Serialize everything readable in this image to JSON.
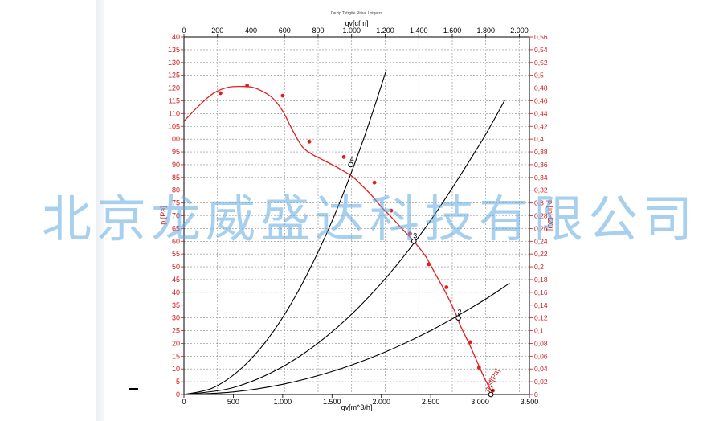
{
  "chart_data": {
    "type": "line",
    "title": "Dezip Tytrgite Ritive Lotgerrs",
    "x_bottom": {
      "label": "qv[m^3/h]",
      "range": [
        0,
        3500
      ],
      "ticks": [
        0,
        500,
        1000,
        1500,
        2000,
        2500,
        3000,
        3500
      ],
      "tick_labels": [
        "0",
        "500",
        "1.000",
        "1.500",
        "2.000",
        "2.500",
        "3.000",
        "3.500"
      ]
    },
    "x_top": {
      "label": "qv[cfm]",
      "range": [
        0,
        2060
      ],
      "ticks": [
        0,
        200,
        400,
        600,
        800,
        1000,
        1200,
        1400,
        1600,
        1800,
        2000
      ],
      "tick_labels": [
        "0",
        "200",
        "400",
        "600",
        "800",
        "1.000",
        "1.200",
        "1.400",
        "1.600",
        "1.800",
        "2.000"
      ]
    },
    "y_left": {
      "label": "p [Pa]",
      "range": [
        0,
        140
      ],
      "ticks": [
        0,
        5,
        10,
        15,
        20,
        25,
        30,
        35,
        40,
        45,
        50,
        55,
        60,
        65,
        70,
        75,
        80,
        85,
        90,
        95,
        100,
        105,
        110,
        115,
        120,
        125,
        130,
        135,
        140
      ]
    },
    "y_right": {
      "label": "p [inH2O]",
      "range": [
        0,
        0.56
      ],
      "ticks": [
        0,
        0.02,
        0.04,
        0.06,
        0.08,
        0.1,
        0.12,
        0.14,
        0.16,
        0.18,
        0.2,
        0.22,
        0.24,
        0.26,
        0.28,
        0.3,
        0.32,
        0.34,
        0.36,
        0.38,
        0.4,
        0.42,
        0.44,
        0.46,
        0.48,
        0.5,
        0.52,
        0.54,
        0.56
      ],
      "tick_labels": [
        "0",
        "0,02",
        "0,04",
        "0,06",
        "0,08",
        "0,1",
        "0,12",
        "0,14",
        "0,16",
        "0,18",
        "0,2",
        "0,22",
        "0,24",
        "0,26",
        "0,28",
        "0,3",
        "0,32",
        "0,34",
        "0,36",
        "0,38",
        "0,4",
        "0,42",
        "0,44",
        "0,46",
        "0,48",
        "0,5",
        "0,52",
        "0,54",
        "0,56"
      ]
    },
    "grid": true,
    "series": [
      {
        "name": "p sf[Pa]",
        "color": "#e41e20",
        "curve": [
          [
            0,
            107
          ],
          [
            150,
            113
          ],
          [
            300,
            118
          ],
          [
            450,
            120.3
          ],
          [
            600,
            120.6
          ],
          [
            700,
            120.2
          ],
          [
            800,
            118.6
          ],
          [
            900,
            116
          ],
          [
            1000,
            111
          ],
          [
            1100,
            103.5
          ],
          [
            1200,
            97
          ],
          [
            1300,
            94
          ],
          [
            1400,
            92
          ],
          [
            1550,
            89
          ],
          [
            1700,
            85.5
          ],
          [
            1800,
            82
          ],
          [
            1900,
            78
          ],
          [
            2000,
            73.5
          ],
          [
            2100,
            69.5
          ],
          [
            2200,
            65.3
          ],
          [
            2340,
            59.5
          ],
          [
            2450,
            54
          ],
          [
            2550,
            47
          ],
          [
            2650,
            40
          ],
          [
            2750,
            32
          ],
          [
            2800,
            27
          ],
          [
            2900,
            19
          ],
          [
            2980,
            12
          ],
          [
            3050,
            6
          ],
          [
            3120,
            1
          ]
        ],
        "markers": [
          [
            370,
            118
          ],
          [
            640,
            121
          ],
          [
            1000,
            117
          ],
          [
            1270,
            99
          ],
          [
            1620,
            93
          ],
          [
            1930,
            83
          ],
          [
            2100,
            72
          ],
          [
            2290,
            63
          ],
          [
            2480,
            51
          ],
          [
            2660,
            42
          ],
          [
            2900,
            20.5
          ],
          [
            2990,
            10.5
          ],
          [
            3130,
            1.5
          ]
        ]
      },
      {
        "name": "",
        "color": "#000000",
        "points": [
          [
            0,
            0
          ],
          [
            300,
            2.7
          ],
          [
            600,
            10.9
          ],
          [
            900,
            24.4
          ],
          [
            1200,
            43.5
          ],
          [
            1500,
            67.9
          ],
          [
            1800,
            97.8
          ],
          [
            2050,
            127
          ]
        ]
      },
      {
        "name": "",
        "color": "#000000",
        "points": [
          [
            0,
            0
          ],
          [
            500,
            2.7
          ],
          [
            1000,
            10.9
          ],
          [
            1500,
            24.5
          ],
          [
            2000,
            43.6
          ],
          [
            2500,
            68.2
          ],
          [
            3000,
            98.2
          ],
          [
            3250,
            115.2
          ]
        ]
      },
      {
        "name": "",
        "color": "#000000",
        "points": [
          [
            0,
            0
          ],
          [
            500,
            1
          ],
          [
            1000,
            4
          ],
          [
            1500,
            9
          ],
          [
            2000,
            16
          ],
          [
            2500,
            25
          ],
          [
            3000,
            36
          ],
          [
            3300,
            43.6
          ]
        ]
      }
    ],
    "operating_points": [
      {
        "label": "4",
        "x": 1690,
        "y": 90
      },
      {
        "label": "3",
        "x": 2330,
        "y": 60
      },
      {
        "label": "2",
        "x": 2780,
        "y": 30
      },
      {
        "label": "1",
        "x": 3110,
        "y": 0
      }
    ]
  },
  "watermark": "北京龙威盛达科技有限公司"
}
